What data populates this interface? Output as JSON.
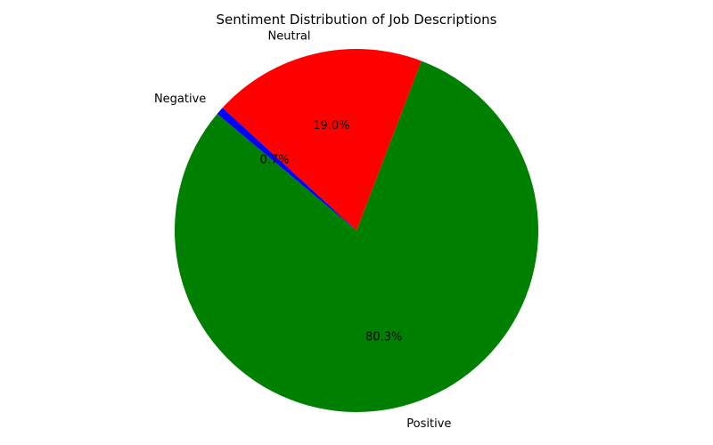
{
  "chart_data": {
    "type": "pie",
    "title": "Sentiment Distribution of Job Descriptions",
    "labels": [
      "Positive",
      "Neutral",
      "Negative"
    ],
    "values": [
      80.3,
      19.0,
      0.7
    ],
    "autopct": [
      "80.3%",
      "19.0%",
      "0.7%"
    ],
    "colors": [
      "#008000",
      "#ff0000",
      "#0000ff"
    ],
    "start_angle_deg": 140,
    "direction": "counterclockwise"
  }
}
